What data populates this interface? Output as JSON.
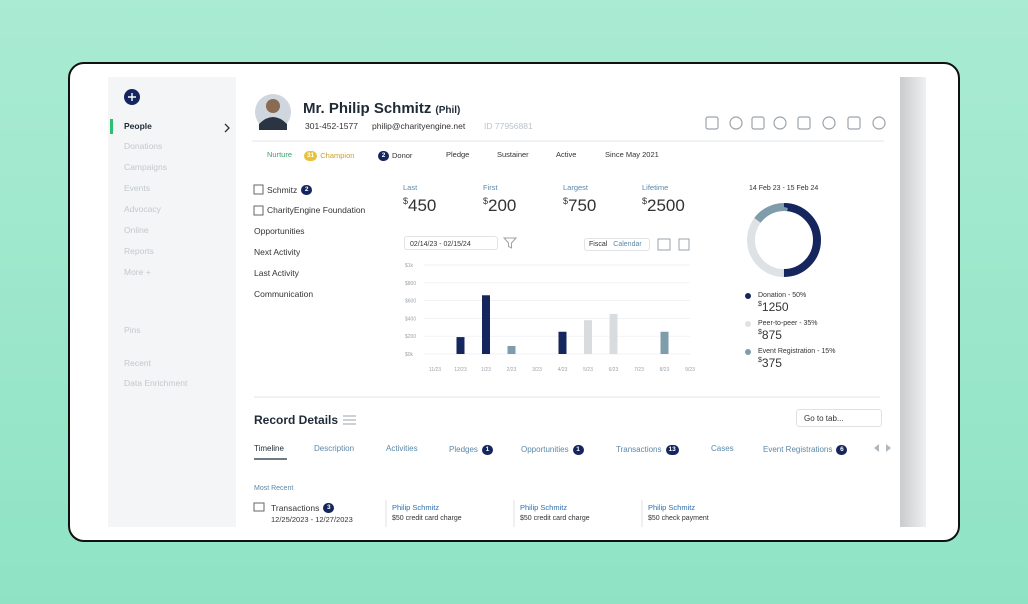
{
  "sidebar": {
    "items": [
      "People",
      "Donations",
      "Campaigns",
      "Events",
      "Advocacy",
      "Online",
      "Reports",
      "More +",
      "Pins",
      "Recent",
      "Data Enrichment"
    ]
  },
  "header": {
    "name": "Mr. Philip Schmitz",
    "nickname": "(Phil)",
    "phone": "301-452-1577",
    "email": "philip@charityengine.net",
    "id": "ID 77956881"
  },
  "tags": [
    {
      "label": "Nurture"
    },
    {
      "badge": "31",
      "label": "Champion"
    },
    {
      "badge": "2",
      "label": "Donor"
    },
    {
      "label": "Pledge"
    },
    {
      "label": "Sustainer"
    },
    {
      "label": "Active"
    },
    {
      "label": "Since May 2021"
    }
  ],
  "links": [
    {
      "label": "Schmitz",
      "badge": "2"
    },
    {
      "label": "CharityEngine Foundation"
    },
    {
      "label": "Opportunities"
    },
    {
      "label": "Next Activity"
    },
    {
      "label": "Last Activity"
    },
    {
      "label": "Communication"
    }
  ],
  "stats": [
    {
      "label": "Last",
      "symbol": "$",
      "amount": "450"
    },
    {
      "label": "First",
      "symbol": "$",
      "amount": "200"
    },
    {
      "label": "Largest",
      "symbol": "$",
      "amount": "750"
    },
    {
      "label": "Lifetime",
      "symbol": "$",
      "amount": "2500"
    }
  ],
  "filters": {
    "date_range": "02/14/23 - 02/15/24",
    "fiscal": "Fiscal",
    "calendar": "Calendar"
  },
  "chart": {
    "type": "bar",
    "categories": [
      "11/23",
      "12/23",
      "1/23",
      "2/23",
      "3/23",
      "4/23",
      "5/23",
      "6/23",
      "7/23",
      "8/23",
      "9/23"
    ],
    "series": [
      {
        "color": "#15265e",
        "values": [
          null,
          190,
          660,
          null,
          null,
          250,
          null,
          null,
          null,
          null,
          null
        ]
      },
      {
        "color": "#d9dcdf",
        "values": [
          null,
          null,
          null,
          null,
          null,
          null,
          380,
          450,
          null,
          null,
          null
        ]
      },
      {
        "color": "#7f9cab",
        "values": [
          null,
          null,
          null,
          90,
          null,
          null,
          null,
          null,
          null,
          250,
          null
        ]
      }
    ],
    "ylim": [
      0,
      1000
    ],
    "yticks": [
      {
        "value": 0,
        "label": "$0k"
      },
      {
        "value": 200,
        "label": "$200"
      },
      {
        "value": 400,
        "label": "$400"
      },
      {
        "value": 600,
        "label": "$600"
      },
      {
        "value": 800,
        "label": "$800"
      },
      {
        "value": 1000,
        "label": "$1k"
      }
    ]
  },
  "donut": {
    "type": "pie",
    "date": "14 Feb 23 - 15 Feb 24",
    "segments": [
      {
        "label": "Donation - 50%",
        "value": 50,
        "color": "#15265e",
        "symbol": "$",
        "amount": "1250"
      },
      {
        "label": "Peer-to-peer - 35%",
        "value": 35,
        "color": "#dfe2e5",
        "symbol": "$",
        "amount": "875"
      },
      {
        "label": "Event Registration - 15%",
        "value": 15,
        "color": "#7f9cab",
        "symbol": "$",
        "amount": "375"
      }
    ]
  },
  "record": {
    "title": "Record Details",
    "goto": "Go to tab...",
    "tabs": [
      {
        "label": "Timeline"
      },
      {
        "label": "Description"
      },
      {
        "label": "Activities"
      },
      {
        "label": "Pledges",
        "badge": "1"
      },
      {
        "label": "Opportunities",
        "badge": "1"
      },
      {
        "label": "Transactions",
        "badge": "13"
      },
      {
        "label": "Cases"
      },
      {
        "label": "Event Registrations",
        "badge": "6"
      }
    ],
    "most_recent": "Most Recent",
    "group": {
      "label": "Transactions",
      "badge": "3",
      "dates": "12/25/2023 - 12/27/2023"
    },
    "cards": [
      {
        "title": "Philip Schmitz",
        "text": "$50 credit card charge"
      },
      {
        "title": "Philip Schmitz",
        "text": "$50 credit card charge"
      },
      {
        "title": "Philip Schmitz",
        "text": "$50 check payment"
      }
    ]
  }
}
